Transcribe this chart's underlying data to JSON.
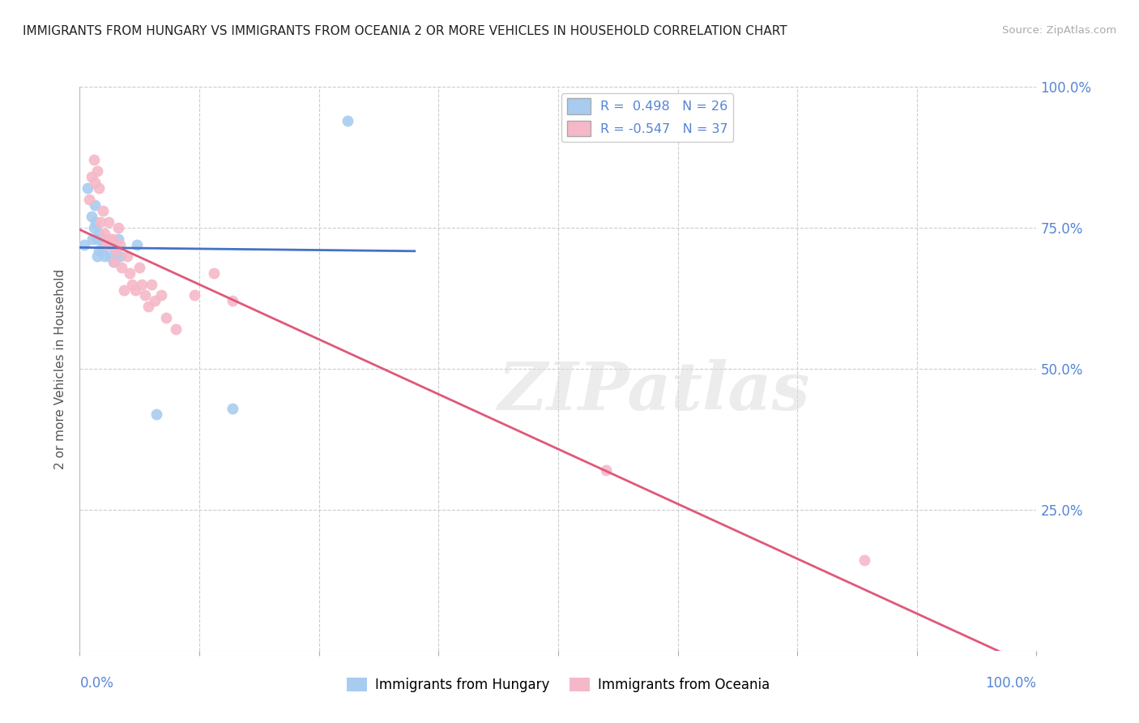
{
  "title": "IMMIGRANTS FROM HUNGARY VS IMMIGRANTS FROM OCEANIA 2 OR MORE VEHICLES IN HOUSEHOLD CORRELATION CHART",
  "source": "Source: ZipAtlas.com",
  "ylabel": "2 or more Vehicles in Household",
  "xlim": [
    0.0,
    1.0
  ],
  "ylim": [
    0.0,
    1.0
  ],
  "legend_hungary": "R =  0.498   N = 26",
  "legend_oceania": "R = -0.547   N = 37",
  "hungary_color": "#A8CCF0",
  "oceania_color": "#F5B8C8",
  "hungary_line_color": "#4472C4",
  "oceania_line_color": "#E05878",
  "tick_color": "#5585D5",
  "hungary_points_x": [
    0.005,
    0.008,
    0.012,
    0.013,
    0.015,
    0.016,
    0.017,
    0.018,
    0.018,
    0.02,
    0.02,
    0.022,
    0.023,
    0.025,
    0.026,
    0.028,
    0.03,
    0.032,
    0.035,
    0.038,
    0.04,
    0.042,
    0.06,
    0.08,
    0.16,
    0.28
  ],
  "hungary_points_y": [
    0.72,
    0.82,
    0.77,
    0.73,
    0.75,
    0.79,
    0.76,
    0.73,
    0.7,
    0.74,
    0.71,
    0.73,
    0.71,
    0.72,
    0.7,
    0.73,
    0.72,
    0.7,
    0.69,
    0.71,
    0.73,
    0.7,
    0.72,
    0.42,
    0.43,
    0.94
  ],
  "oceania_points_x": [
    0.01,
    0.012,
    0.015,
    0.016,
    0.018,
    0.02,
    0.022,
    0.024,
    0.026,
    0.028,
    0.03,
    0.032,
    0.034,
    0.036,
    0.038,
    0.04,
    0.042,
    0.044,
    0.046,
    0.05,
    0.052,
    0.055,
    0.058,
    0.062,
    0.065,
    0.068,
    0.072,
    0.075,
    0.078,
    0.085,
    0.09,
    0.1,
    0.12,
    0.14,
    0.16,
    0.55,
    0.82
  ],
  "oceania_points_y": [
    0.8,
    0.84,
    0.87,
    0.83,
    0.85,
    0.82,
    0.76,
    0.78,
    0.74,
    0.72,
    0.76,
    0.73,
    0.73,
    0.69,
    0.71,
    0.75,
    0.72,
    0.68,
    0.64,
    0.7,
    0.67,
    0.65,
    0.64,
    0.68,
    0.65,
    0.63,
    0.61,
    0.65,
    0.62,
    0.63,
    0.59,
    0.57,
    0.63,
    0.67,
    0.62,
    0.32,
    0.16
  ],
  "watermark": "ZIPatlas",
  "background_color": "#FFFFFF",
  "grid_color": "#CCCCCC",
  "ytick_positions": [
    0.25,
    0.5,
    0.75,
    1.0
  ],
  "ytick_labels": [
    "25.0%",
    "50.0%",
    "75.0%",
    "100.0%"
  ],
  "xtick_positions": [
    0.0,
    0.125,
    0.25,
    0.375,
    0.5,
    0.625,
    0.75,
    0.875,
    1.0
  ],
  "xtick_edge_labels": [
    "0.0%",
    "100.0%"
  ]
}
